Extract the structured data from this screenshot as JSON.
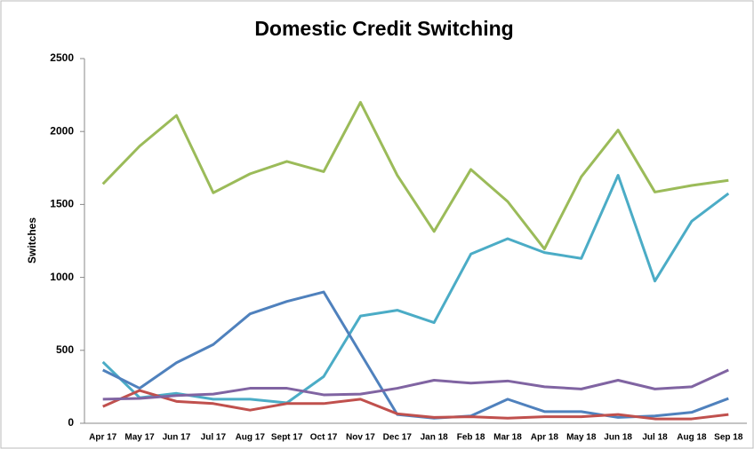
{
  "chart_data": {
    "type": "line",
    "title": "Domestic Credit Switching",
    "y_label": "Switches",
    "categories": [
      "Apr 17",
      "May 17",
      "Jun 17",
      "Jul 17",
      "Aug 17",
      "Sept 17",
      "Oct 17",
      "Nov 17",
      "Dec 17",
      "Jan 18",
      "Feb 18",
      "Mar 18",
      "Apr 18",
      "May 18",
      "Jun 18",
      "Jul 18",
      "Aug 18",
      "Sep 18"
    ],
    "series": [
      {
        "color": "#9bbb59",
        "values": [
          1640,
          1900,
          2110,
          1580,
          1710,
          1795,
          1725,
          2200,
          1700,
          1315,
          1740,
          1520,
          1195,
          1690,
          2010,
          1585,
          1630,
          1665
        ]
      },
      {
        "color": "#4bacc6",
        "values": [
          420,
          175,
          205,
          165,
          165,
          140,
          320,
          735,
          775,
          690,
          1160,
          1265,
          1170,
          1130,
          1700,
          975,
          1385,
          1575
        ]
      },
      {
        "color": "#4f81bd",
        "values": [
          365,
          240,
          415,
          540,
          750,
          835,
          900,
          480,
          60,
          35,
          50,
          165,
          80,
          80,
          40,
          50,
          75,
          170
        ]
      },
      {
        "color": "#c0504d",
        "values": [
          115,
          225,
          150,
          135,
          90,
          135,
          135,
          165,
          65,
          40,
          45,
          35,
          45,
          45,
          60,
          30,
          30,
          60
        ]
      },
      {
        "color": "#8064a2",
        "values": [
          165,
          170,
          190,
          200,
          240,
          240,
          195,
          200,
          240,
          295,
          275,
          290,
          250,
          235,
          295,
          235,
          250,
          365
        ]
      }
    ],
    "ylim": [
      0,
      2500
    ],
    "yticks": [
      0,
      500,
      1000,
      1500,
      2000,
      2500
    ],
    "grid": false
  }
}
